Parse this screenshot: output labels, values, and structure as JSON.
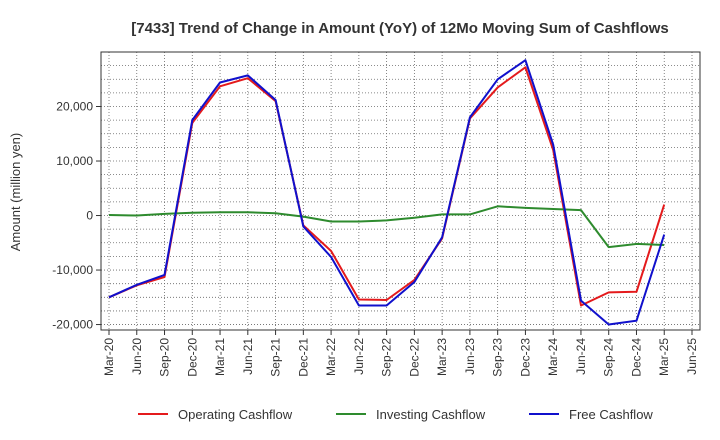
{
  "chart_data": {
    "type": "line",
    "title": "[7433]  Trend of Change in Amount (YoY) of 12Mo Moving Sum of Cashflows",
    "xlabel": "",
    "ylabel": "Amount (million yen)",
    "ylim": [
      -21000,
      30000
    ],
    "yticks": [
      -20000,
      -10000,
      0,
      10000,
      20000
    ],
    "ytick_labels": [
      "-20,000",
      "-10,000",
      "0",
      "10,000",
      "20,000"
    ],
    "categories": [
      "Mar-20",
      "Jun-20",
      "Sep-20",
      "Dec-20",
      "Mar-21",
      "Jun-21",
      "Sep-21",
      "Dec-21",
      "Mar-22",
      "Jun-22",
      "Sep-22",
      "Dec-22",
      "Mar-23",
      "Jun-23",
      "Sep-23",
      "Dec-23",
      "Mar-24",
      "Jun-24",
      "Sep-24",
      "Dec-24",
      "Mar-25",
      "Jun-25"
    ],
    "grid": true,
    "legend_position": "bottom",
    "series": [
      {
        "name": "Operating Cashflow",
        "color": "#e41a1c",
        "values": [
          -15000,
          -12800,
          -11300,
          17000,
          23700,
          25200,
          21000,
          -1800,
          -6500,
          -15400,
          -15500,
          -11800,
          -4200,
          17800,
          23500,
          27200,
          12000,
          -16500,
          -14100,
          -14000,
          2000,
          null
        ]
      },
      {
        "name": "Investing Cashflow",
        "color": "#2e8b2e",
        "values": [
          100,
          0,
          300,
          500,
          600,
          600,
          400,
          -200,
          -1100,
          -1100,
          -900,
          -400,
          200,
          200,
          1700,
          1400,
          1200,
          1000,
          -5800,
          -5200,
          -5400,
          null
        ]
      },
      {
        "name": "Free Cashflow",
        "color": "#1010cc",
        "values": [
          -15000,
          -12700,
          -10900,
          17500,
          24400,
          25700,
          21200,
          -2000,
          -7600,
          -16500,
          -16500,
          -12200,
          -4000,
          18000,
          25000,
          28500,
          13000,
          -15600,
          -20000,
          -19300,
          -3500,
          null
        ]
      }
    ]
  }
}
